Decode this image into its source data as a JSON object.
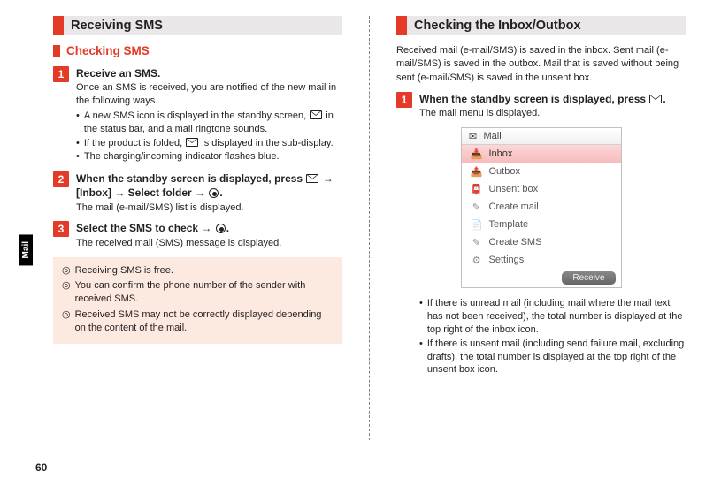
{
  "tab": "Mail",
  "page_number": "60",
  "left": {
    "heading": "Receiving SMS",
    "subheading": "Checking SMS",
    "steps": [
      {
        "num": "1",
        "title": "Receive an SMS.",
        "desc": "Once an SMS is received, you are notified of the new mail in the following ways.",
        "bullets": [
          "A new SMS icon is displayed in the standby screen, ✉ in the status bar, and a mail ringtone sounds.",
          "If the product is folded, ✉ is displayed in the sub-display.",
          "The charging/incoming indicator flashes blue."
        ]
      },
      {
        "num": "2",
        "title": "When the standby screen is displayed, press ✉ → [Inbox] → Select folder → ◉.",
        "desc": "The mail (e-mail/SMS) list is displayed."
      },
      {
        "num": "3",
        "title": "Select the SMS to check → ◉.",
        "desc": "The received mail (SMS) message is displayed."
      }
    ],
    "notes": [
      "Receiving SMS is free.",
      "You can confirm the phone number of the sender with received SMS.",
      "Received SMS may not be correctly displayed depending on the content of the mail."
    ]
  },
  "right": {
    "heading": "Checking the Inbox/Outbox",
    "intro": "Received mail (e-mail/SMS) is saved in the inbox. Sent mail (e-mail/SMS) is saved in the outbox. Mail that is saved without being sent (e-mail/SMS) is saved in the unsent box.",
    "step": {
      "num": "1",
      "title": "When the standby screen is displayed, press ✉.",
      "desc": "The mail menu is displayed."
    },
    "menu_title": "Mail",
    "menu_items": [
      {
        "icon": "📥",
        "label": "Inbox",
        "sel": true,
        "color": "#d94c3a"
      },
      {
        "icon": "📤",
        "label": "Outbox",
        "sel": false,
        "color": "#8a8a8a"
      },
      {
        "icon": "📮",
        "label": "Unsent box",
        "sel": false,
        "color": "#c24242"
      },
      {
        "icon": "✎",
        "label": "Create mail",
        "sel": false,
        "color": "#8a8a8a"
      },
      {
        "icon": "📄",
        "label": "Template",
        "sel": false,
        "color": "#8a8a8a"
      },
      {
        "icon": "✎",
        "label": "Create SMS",
        "sel": false,
        "color": "#8a8a8a"
      },
      {
        "icon": "⚙",
        "label": "Settings",
        "sel": false,
        "color": "#8a8a8a"
      }
    ],
    "menu_button": "Receive",
    "post_bullets": [
      "If there is unread mail (including mail where the mail text has not been received), the total number is displayed at the top right of the inbox icon.",
      "If there is unsent mail (including send failure mail, excluding drafts), the total number is displayed at the top right of the unsent box icon."
    ]
  },
  "colors": {
    "accent": "#e33b28",
    "heading_bg": "#e9e7e7",
    "info_bg": "#fce9df"
  }
}
